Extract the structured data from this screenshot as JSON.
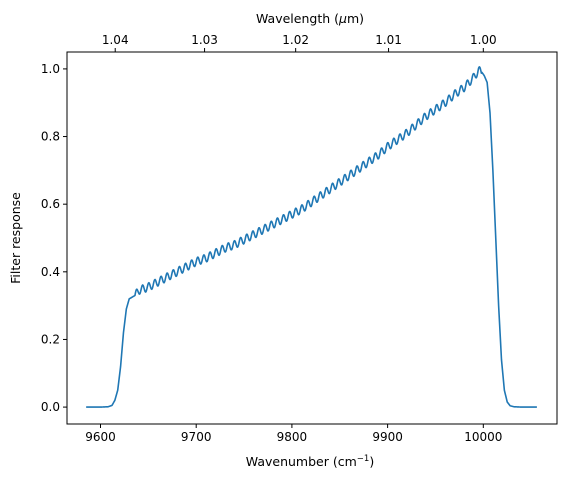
{
  "chart_data": {
    "type": "line",
    "title": "",
    "xlabel": "Wavenumber (cm",
    "xlabel_sup": "−1",
    "xlabel_close": ")",
    "ylabel": "Filter response",
    "top_xlabel_prefix": "Wavelength (",
    "top_xlabel_mu": "μ",
    "top_xlabel_suffix": "m)",
    "xlim": [
      9565,
      10077
    ],
    "ylim": [
      -0.05,
      1.05
    ],
    "grid": false,
    "legend": "none",
    "x_ticks": [
      9600,
      9700,
      9800,
      9900,
      10000
    ],
    "x_tick_labels": [
      "9600",
      "9700",
      "9800",
      "9900",
      "10000"
    ],
    "y_ticks": [
      0.0,
      0.2,
      0.4,
      0.6,
      0.8,
      1.0
    ],
    "y_tick_labels": [
      "0.0",
      "0.2",
      "0.4",
      "0.6",
      "0.8",
      "1.0"
    ],
    "top_ticks_um": [
      1.04,
      1.03,
      1.02,
      1.01,
      1.0
    ],
    "top_tick_labels": [
      "1.04",
      "1.03",
      "1.02",
      "1.01",
      "1.00"
    ],
    "series": [
      {
        "color": "#1f77b4",
        "x": [
          9585,
          9600,
          9608,
          9612,
          9615,
          9618,
          9621,
          9624,
          9627,
          9630,
          9633,
          9636,
          9640,
          9650,
          9660,
          9670,
          9680,
          9690,
          9700,
          9710,
          9720,
          9730,
          9740,
          9750,
          9760,
          9770,
          9780,
          9790,
          9800,
          9810,
          9820,
          9830,
          9840,
          9850,
          9860,
          9870,
          9880,
          9890,
          9900,
          9910,
          9920,
          9930,
          9940,
          9950,
          9960,
          9970,
          9980,
          9990,
          9995,
          9998,
          10001,
          10004,
          10007,
          10010,
          10013,
          10016,
          10019,
          10022,
          10025,
          10028,
          10032,
          10040,
          10056
        ],
        "y": [
          0.0,
          0.0,
          0.001,
          0.005,
          0.02,
          0.05,
          0.12,
          0.22,
          0.29,
          0.32,
          0.325,
          0.33,
          0.345,
          0.355,
          0.37,
          0.385,
          0.4,
          0.415,
          0.43,
          0.44,
          0.455,
          0.47,
          0.48,
          0.495,
          0.51,
          0.525,
          0.54,
          0.555,
          0.57,
          0.585,
          0.605,
          0.625,
          0.645,
          0.665,
          0.685,
          0.705,
          0.725,
          0.745,
          0.77,
          0.79,
          0.81,
          0.835,
          0.86,
          0.88,
          0.9,
          0.925,
          0.945,
          0.975,
          0.995,
          0.992,
          0.98,
          0.96,
          0.87,
          0.7,
          0.5,
          0.3,
          0.14,
          0.05,
          0.015,
          0.004,
          0.001,
          0.0,
          0.0
        ]
      }
    ],
    "ripple": {
      "period_cm": 6.4,
      "amplitude": 0.012,
      "x_start": 9636,
      "x_end": 9998
    }
  }
}
